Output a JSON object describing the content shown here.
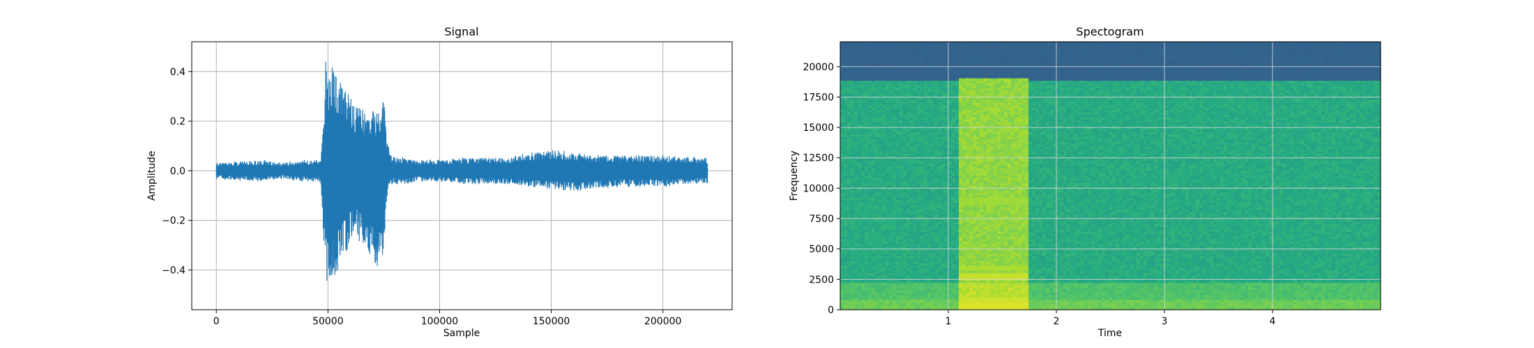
{
  "chart_data": [
    {
      "type": "line",
      "title": "Signal",
      "xlabel": "Sample",
      "ylabel": "Amplitude",
      "xlim": [
        -11000,
        231000
      ],
      "ylim": [
        -0.56,
        0.52
      ],
      "xticks": [
        0,
        50000,
        100000,
        150000,
        200000
      ],
      "xtick_labels": [
        "0",
        "50000",
        "100000",
        "150000",
        "200000"
      ],
      "yticks": [
        -0.4,
        -0.2,
        0.0,
        0.2,
        0.4
      ],
      "ytick_labels": [
        "−0.4",
        "−0.2",
        "0.0",
        "0.2",
        "0.4"
      ],
      "grid": true,
      "color": "#1f77b4",
      "series": [
        {
          "x": [
            0,
            10000,
            20000,
            30000,
            40000,
            46000,
            47000,
            48000,
            49000,
            50000,
            51000,
            52000,
            54000,
            56000,
            58000,
            60000,
            62000,
            64000,
            66000,
            68000,
            70000,
            72000,
            74000,
            75000,
            76000,
            77000,
            78000,
            80000,
            85000,
            90000,
            100000,
            110000,
            120000,
            130000,
            140000,
            150000,
            160000,
            170000,
            180000,
            190000,
            200000,
            210000,
            220000
          ],
          "upper": [
            0.03,
            0.035,
            0.04,
            0.03,
            0.04,
            0.04,
            0.06,
            0.2,
            0.45,
            0.43,
            0.36,
            0.46,
            0.39,
            0.38,
            0.32,
            0.3,
            0.26,
            0.27,
            0.24,
            0.22,
            0.24,
            0.23,
            0.28,
            0.31,
            0.18,
            0.1,
            0.06,
            0.05,
            0.05,
            0.04,
            0.04,
            0.05,
            0.05,
            0.05,
            0.07,
            0.08,
            0.07,
            0.06,
            0.06,
            0.06,
            0.06,
            0.05,
            0.05
          ],
          "lower": [
            -0.03,
            -0.035,
            -0.04,
            -0.03,
            -0.04,
            -0.04,
            -0.08,
            -0.25,
            -0.45,
            -0.49,
            -0.5,
            -0.46,
            -0.43,
            -0.35,
            -0.33,
            -0.28,
            -0.24,
            -0.28,
            -0.3,
            -0.34,
            -0.38,
            -0.41,
            -0.42,
            -0.32,
            -0.14,
            -0.06,
            -0.05,
            -0.05,
            -0.05,
            -0.04,
            -0.04,
            -0.05,
            -0.05,
            -0.05,
            -0.06,
            -0.07,
            -0.08,
            -0.07,
            -0.06,
            -0.06,
            -0.06,
            -0.05,
            -0.05
          ]
        }
      ]
    },
    {
      "type": "heatmap",
      "title": "Spectogram",
      "xlabel": "Time",
      "ylabel": "Frequency",
      "xlim": [
        0,
        5
      ],
      "ylim": [
        0,
        22050
      ],
      "xticks": [
        1,
        2,
        3,
        4
      ],
      "xtick_labels": [
        "1",
        "2",
        "3",
        "4"
      ],
      "yticks": [
        0,
        2500,
        5000,
        7500,
        10000,
        12500,
        15000,
        17500,
        20000
      ],
      "ytick_labels": [
        "0",
        "2500",
        "5000",
        "7500",
        "10000",
        "12500",
        "15000",
        "17500",
        "20000"
      ],
      "grid": true,
      "colormap": "viridis",
      "frequency_cutoff": 18800,
      "burst_time_range": [
        1.1,
        1.73
      ],
      "bright_bands": [
        {
          "freq": 300,
          "level": 0.95
        },
        {
          "freq": 700,
          "level": 0.93
        },
        {
          "freq": 2700,
          "level": 0.92
        },
        {
          "freq": 3400,
          "level": 0.88
        },
        {
          "freq": 8900,
          "level": 0.86
        }
      ],
      "base_levels": {
        "background_top": 0.32,
        "background_body": 0.62,
        "background_low": 0.72,
        "burst_body": 0.84
      }
    }
  ]
}
